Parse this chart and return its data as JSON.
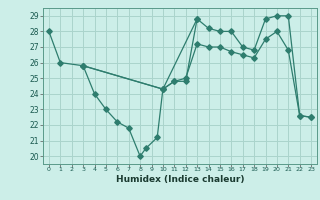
{
  "xlabel": "Humidex (Indice chaleur)",
  "bg_color": "#cceee8",
  "grid_color": "#aad4cc",
  "line_color": "#2e7d6e",
  "xlim": [
    -0.5,
    23.5
  ],
  "ylim": [
    19.5,
    29.5
  ],
  "xticks": [
    0,
    1,
    2,
    3,
    4,
    5,
    6,
    7,
    8,
    9,
    10,
    11,
    12,
    13,
    14,
    15,
    16,
    17,
    18,
    19,
    20,
    21,
    22,
    23
  ],
  "yticks": [
    20,
    21,
    22,
    23,
    24,
    25,
    26,
    27,
    28,
    29
  ],
  "lines": [
    {
      "x": [
        0,
        1,
        3,
        10,
        13,
        14,
        15,
        16,
        17,
        18,
        19,
        20,
        21,
        22,
        23
      ],
      "y": [
        28,
        26,
        25.8,
        24.3,
        28.8,
        28.2,
        28.0,
        28.0,
        27.0,
        26.8,
        28.8,
        29.0,
        29.0,
        22.6,
        22.5
      ]
    },
    {
      "x": [
        3,
        4,
        5,
        6,
        7,
        8,
        8.5,
        9.5,
        10,
        11,
        12,
        13
      ],
      "y": [
        25.8,
        24.0,
        23.0,
        22.2,
        21.8,
        20.0,
        20.5,
        21.2,
        24.3,
        24.8,
        24.8,
        28.8
      ]
    },
    {
      "x": [
        3,
        10,
        11,
        12,
        13,
        14,
        15,
        16,
        17,
        18,
        19,
        20,
        21,
        22,
        23
      ],
      "y": [
        25.8,
        24.3,
        24.8,
        25.0,
        27.2,
        27.0,
        27.0,
        26.7,
        26.5,
        26.3,
        27.5,
        28.0,
        26.8,
        22.6,
        22.5
      ]
    }
  ]
}
